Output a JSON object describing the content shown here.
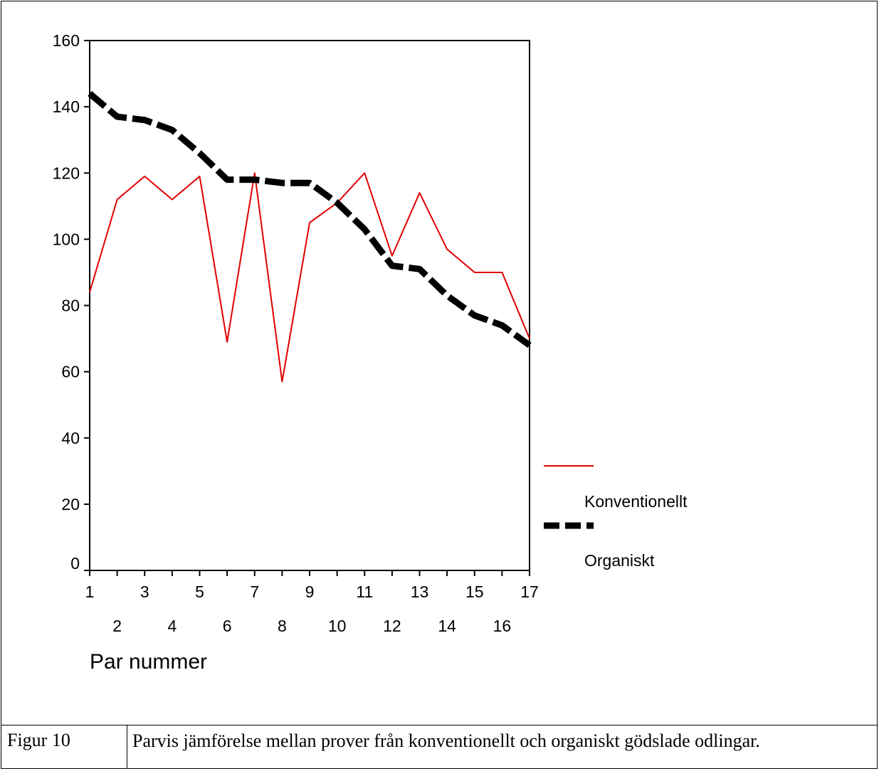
{
  "chart_data": {
    "type": "line",
    "x": [
      1,
      2,
      3,
      4,
      5,
      6,
      7,
      8,
      9,
      10,
      11,
      12,
      13,
      14,
      15,
      16,
      17
    ],
    "x_tick_labels_top": [
      "1",
      "3",
      "5",
      "7",
      "9",
      "11",
      "13",
      "15",
      "17"
    ],
    "x_tick_labels_bottom": [
      "2",
      "4",
      "6",
      "8",
      "10",
      "12",
      "14",
      "16"
    ],
    "y_ticks": [
      "0",
      "20",
      "40",
      "60",
      "80",
      "100",
      "120",
      "140",
      "160"
    ],
    "ylim": [
      0,
      160
    ],
    "xlabel": "Par nummer",
    "ylabel": "",
    "title": "",
    "legend_position": "right",
    "grid": false,
    "series": [
      {
        "name": "Konventionellt",
        "color": "#e00000",
        "style": "solid",
        "values": [
          84,
          112,
          119,
          112,
          119,
          69,
          120,
          57,
          105,
          111,
          120,
          95,
          114,
          97,
          90,
          90,
          70
        ]
      },
      {
        "name": "Organiskt",
        "color": "#000000",
        "style": "dashed",
        "values": [
          144,
          137,
          136,
          133,
          126,
          118,
          118,
          117,
          117,
          111,
          103,
          92,
          91,
          83,
          77,
          74,
          68
        ]
      }
    ]
  },
  "caption": {
    "label": "Figur 10",
    "text": "Parvis jämförelse mellan prover från konventionellt och organiskt gödslade odlingar."
  }
}
